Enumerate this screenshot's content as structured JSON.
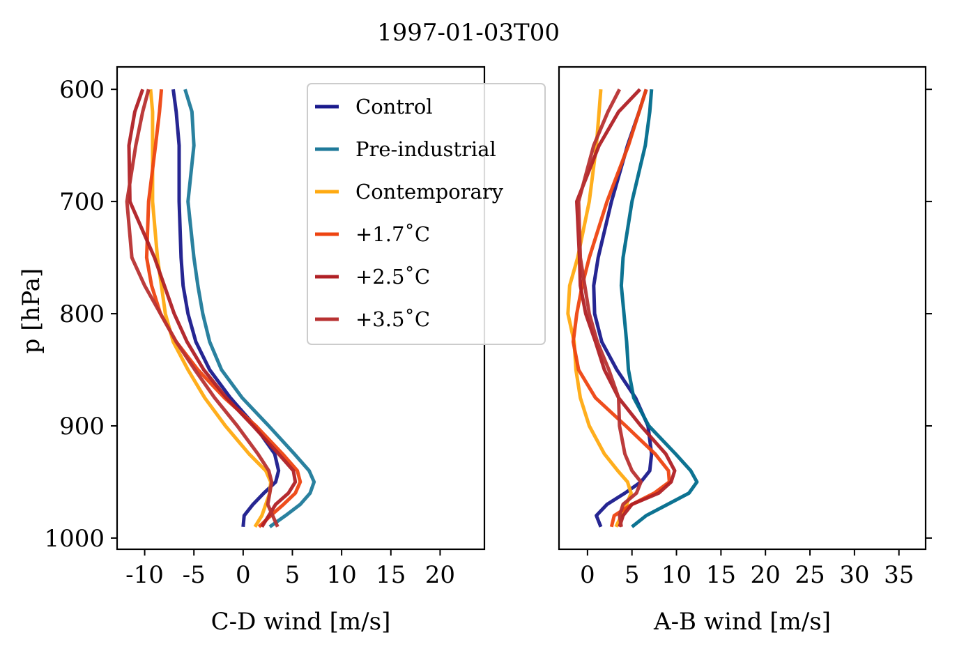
{
  "figure": {
    "title": "1997-01-03T00"
  },
  "chart_data": [
    {
      "type": "line",
      "panel": "left",
      "xlabel": "C-D wind [m/s]",
      "ylabel": "p [hPa]",
      "xlim": [
        -12.8,
        24.5
      ],
      "ylim": [
        1010,
        580
      ],
      "y_inverted": true,
      "xticks": [
        -10,
        -5,
        0,
        5,
        10,
        15,
        20
      ],
      "xtick_labels": [
        "-10",
        "-5",
        "0",
        "5",
        "10",
        "15",
        "20"
      ],
      "yticks": [
        600,
        700,
        800,
        900,
        1000
      ],
      "ytick_labels": [
        "600",
        "700",
        "800",
        "900",
        "1000"
      ],
      "grid": false,
      "legend": {
        "placement": "top-right",
        "entries": [
          "Control",
          "Pre-industrial",
          "Contemporary",
          "+1.7$^\\circ$C",
          "+2.5$^\\circ$C",
          "+3.5$^\\circ$C"
        ],
        "display": [
          "Control",
          "Pre-industrial",
          "Contemporary",
          "+1.7˚C",
          "+2.5˚C",
          "+3.5˚C"
        ]
      },
      "series": [
        {
          "name": "Control",
          "color": "#1a1a8c",
          "x": [
            0,
            0.1,
            1,
            2.1,
            3.3,
            3.6,
            3.2,
            1.2,
            -1.3,
            -3.4,
            -4.8,
            -5.6,
            -6.1,
            -6.3,
            -6.5,
            -6.5,
            -6.8,
            -7.1
          ],
          "y": [
            990,
            980,
            970,
            960,
            950,
            940,
            925,
            900,
            875,
            850,
            825,
            800,
            775,
            750,
            700,
            650,
            620,
            600
          ]
        },
        {
          "name": "Pre-industrial",
          "color": "#1f7a9a",
          "x": [
            2.7,
            4.3,
            5.8,
            6.8,
            7.2,
            6.7,
            5.2,
            2.6,
            -0.1,
            -2.2,
            -3.4,
            -4.1,
            -4.6,
            -5.0,
            -5.6,
            -5.0,
            -5.2,
            -5.9
          ],
          "y": [
            990,
            980,
            970,
            960,
            950,
            940,
            925,
            900,
            875,
            850,
            825,
            800,
            775,
            750,
            700,
            650,
            620,
            600
          ]
        },
        {
          "name": "Contemporary",
          "color": "#ffaa11",
          "x": [
            1.2,
            1.9,
            2.3,
            2.7,
            2.8,
            2.3,
            0.6,
            -1.8,
            -3.9,
            -5.6,
            -7.1,
            -7.9,
            -8.3,
            -8.7,
            -9.2,
            -9.2,
            -9.2,
            -9.4
          ],
          "y": [
            990,
            980,
            970,
            960,
            950,
            940,
            925,
            900,
            875,
            850,
            825,
            800,
            775,
            750,
            700,
            650,
            620,
            600
          ]
        },
        {
          "name": "+1.7˚C",
          "color": "#ee4411",
          "x": [
            1.6,
            2.8,
            4.1,
            5.3,
            5.8,
            5.5,
            4.0,
            1.3,
            -1.9,
            -4.6,
            -6.8,
            -8.4,
            -9.3,
            -9.8,
            -9.6,
            -8.9,
            -8.5,
            -8.3
          ],
          "y": [
            990,
            980,
            970,
            960,
            950,
            940,
            925,
            900,
            875,
            850,
            825,
            800,
            775,
            750,
            700,
            650,
            620,
            600
          ]
        },
        {
          "name": "+2.5˚C",
          "color": "#b02025",
          "x": [
            1.9,
            2.6,
            3.3,
            4.6,
            5.3,
            5.1,
            3.6,
            1.0,
            -1.7,
            -4.0,
            -5.7,
            -7.0,
            -8.0,
            -9.0,
            -11.5,
            -11.6,
            -11.0,
            -10.2
          ],
          "y": [
            990,
            980,
            970,
            960,
            950,
            940,
            925,
            900,
            875,
            850,
            825,
            800,
            775,
            750,
            700,
            650,
            620,
            600
          ]
        },
        {
          "name": "+3.5˚C",
          "color": "#b83232",
          "x": [
            3.5,
            3.0,
            2.5,
            2.7,
            2.9,
            2.6,
            1.5,
            -0.6,
            -2.9,
            -4.9,
            -6.8,
            -8.4,
            -10.0,
            -11.3,
            -11.8,
            -10.9,
            -10.2,
            -9.6
          ],
          "y": [
            990,
            980,
            970,
            960,
            950,
            940,
            925,
            900,
            875,
            850,
            825,
            800,
            775,
            750,
            700,
            650,
            620,
            600
          ]
        }
      ]
    },
    {
      "type": "line",
      "panel": "right",
      "xlabel": "A-B wind [m/s]",
      "xlim": [
        -3.2,
        38.0
      ],
      "ylim": [
        1010,
        580
      ],
      "y_inverted": true,
      "xticks": [
        0,
        5,
        10,
        15,
        20,
        25,
        30,
        35
      ],
      "xtick_labels": [
        "0",
        "5",
        "10",
        "15",
        "20",
        "25",
        "30",
        "35"
      ],
      "yticks": [
        600,
        700,
        800,
        900,
        1000
      ],
      "ytick_labels": [],
      "grid": false,
      "series": [
        {
          "name": "Control",
          "color": "#1a1a8c",
          "x": [
            1.5,
            1.0,
            2.2,
            4.2,
            6.0,
            7.0,
            7.2,
            6.8,
            5.4,
            3.3,
            1.6,
            0.8,
            0.7,
            1.2,
            2.7,
            4.5,
            5.8,
            6.6
          ],
          "y": [
            990,
            980,
            970,
            960,
            950,
            940,
            925,
            900,
            875,
            850,
            825,
            800,
            775,
            750,
            700,
            650,
            620,
            600
          ]
        },
        {
          "name": "Pre-industrial",
          "color": "#006b8c",
          "x": [
            5.0,
            6.6,
            9.0,
            11.4,
            12.3,
            11.6,
            9.9,
            6.9,
            5.2,
            4.6,
            4.4,
            4.1,
            3.8,
            4.0,
            5.0,
            6.5,
            7.0,
            7.2
          ],
          "y": [
            990,
            980,
            970,
            960,
            950,
            940,
            925,
            900,
            875,
            850,
            825,
            800,
            775,
            750,
            700,
            650,
            620,
            600
          ]
        },
        {
          "name": "Contemporary",
          "color": "#ffaa11",
          "x": [
            3.2,
            3.8,
            4.4,
            4.9,
            4.5,
            3.4,
            1.9,
            0.2,
            -0.8,
            -1.3,
            -1.5,
            -2.2,
            -2.0,
            -1.1,
            0.2,
            1.0,
            1.3,
            1.5
          ],
          "y": [
            990,
            980,
            970,
            960,
            950,
            940,
            925,
            900,
            875,
            850,
            825,
            800,
            775,
            750,
            700,
            650,
            620,
            600
          ]
        },
        {
          "name": "+1.7˚C",
          "color": "#ee4411",
          "x": [
            2.7,
            3.0,
            5.0,
            7.5,
            9.2,
            9.1,
            7.6,
            4.3,
            0.9,
            -1.0,
            -1.6,
            -1.2,
            -0.6,
            0.2,
            2.2,
            4.6,
            5.8,
            6.6
          ],
          "y": [
            990,
            980,
            970,
            960,
            950,
            940,
            925,
            900,
            875,
            850,
            825,
            800,
            775,
            750,
            700,
            650,
            620,
            600
          ]
        },
        {
          "name": "+2.5˚C",
          "color": "#b02025",
          "x": [
            3.6,
            4.0,
            5.0,
            8.0,
            9.4,
            9.8,
            8.8,
            6.0,
            3.5,
            1.9,
            0.9,
            -0.2,
            -0.8,
            -0.9,
            -1.2,
            1.3,
            3.5,
            5.9
          ],
          "y": [
            990,
            980,
            970,
            960,
            950,
            940,
            925,
            900,
            875,
            850,
            825,
            800,
            775,
            750,
            700,
            650,
            620,
            600
          ]
        },
        {
          "name": "+3.5˚C",
          "color": "#b83232",
          "x": [
            3.8,
            3.6,
            4.0,
            5.5,
            6.0,
            5.0,
            4.2,
            3.6,
            3.5,
            2.4,
            1.1,
            0.2,
            -0.3,
            -0.8,
            -1.0,
            0.7,
            2.3,
            3.6
          ],
          "y": [
            990,
            980,
            970,
            960,
            950,
            940,
            925,
            900,
            875,
            850,
            825,
            800,
            775,
            750,
            700,
            650,
            620,
            600
          ]
        }
      ]
    }
  ]
}
